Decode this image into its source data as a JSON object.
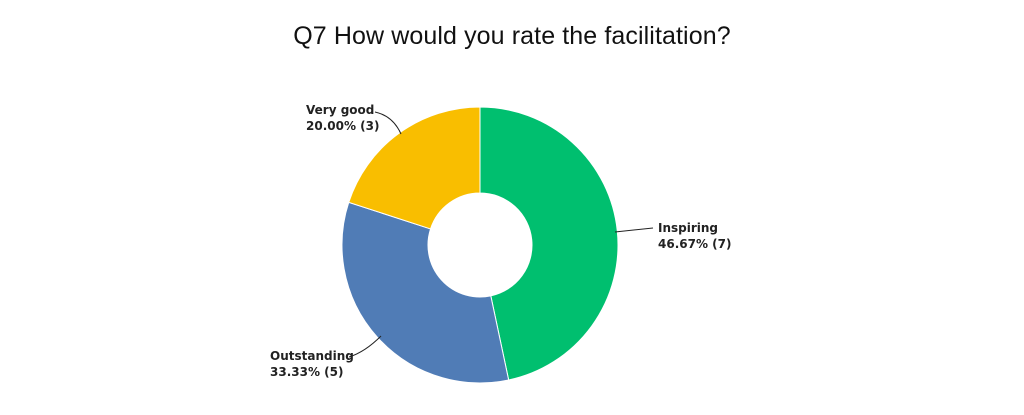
{
  "chart_data": {
    "type": "pie",
    "donut": true,
    "title": "Q7 How would you rate the facilitation?",
    "slices": [
      {
        "label": "Inspiring",
        "percent": 46.67,
        "count": 7,
        "value_label": "46.67% (7)",
        "color": "#00bf6f"
      },
      {
        "label": "Outstanding",
        "percent": 33.33,
        "count": 5,
        "value_label": "33.33% (5)",
        "color": "#507cb6"
      },
      {
        "label": "Very good",
        "percent": 20.0,
        "count": 3,
        "value_label": "20.00% (3)",
        "color": "#f9be00"
      }
    ],
    "legend": "none"
  }
}
